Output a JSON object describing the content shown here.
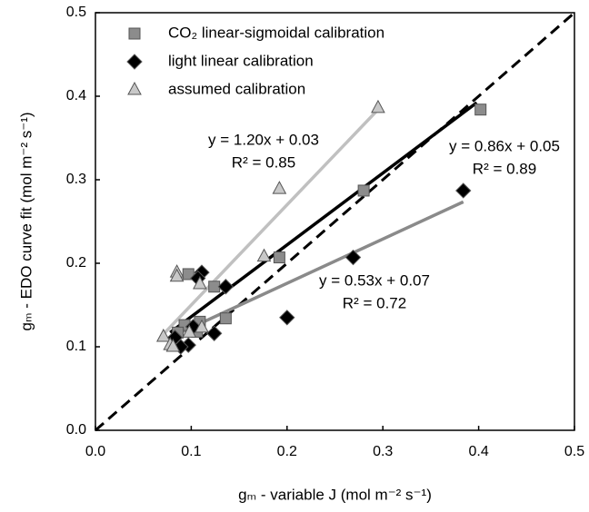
{
  "chart_data": {
    "type": "scatter",
    "x_label": "gₘ - variable J (mol m⁻² s⁻¹)",
    "y_label": "gₘ - EDO curve fit (mol m⁻² s⁻¹)",
    "xlim": [
      0,
      0.5
    ],
    "ylim": [
      0,
      0.5
    ],
    "xticks": [
      {
        "value": 0,
        "label": "0.0"
      },
      0.1,
      0.2,
      0.3,
      0.4,
      0.5
    ],
    "yticks": [
      {
        "value": 0,
        "label": "0.0"
      },
      0.1,
      0.2,
      0.3,
      0.4,
      0.5
    ],
    "identity_line": true,
    "series": [
      {
        "name": "CO₂ linear-sigmoidal calibration",
        "marker": "square",
        "color": "#8c8c8c",
        "x": [
          0.402,
          0.28,
          0.192,
          0.097,
          0.124,
          0.136,
          0.109,
          0.106,
          0.093,
          0.086
        ],
        "values": [
          0.384,
          0.287,
          0.207,
          0.187,
          0.172,
          0.134,
          0.13,
          0.118,
          0.126,
          0.117
        ]
      },
      {
        "name": "light linear calibration",
        "marker": "diamond",
        "color": "#000000",
        "x": [
          0.384,
          0.269,
          0.2,
          0.111,
          0.107,
          0.136,
          0.124,
          0.102,
          0.083,
          0.097,
          0.089
        ],
        "values": [
          0.287,
          0.207,
          0.135,
          0.189,
          0.182,
          0.172,
          0.116,
          0.124,
          0.111,
          0.102,
          0.1
        ]
      },
      {
        "name": "assumed calibration",
        "marker": "triangle",
        "color": "#c8c8c8",
        "x": [
          0.295,
          0.192,
          0.176,
          0.085,
          0.085,
          0.109,
          0.071,
          0.078,
          0.081,
          0.098,
          0.111
        ],
        "values": [
          0.386,
          0.289,
          0.208,
          0.189,
          0.184,
          0.175,
          0.112,
          0.102,
          0.1,
          0.117,
          0.123
        ]
      }
    ],
    "fits": [
      {
        "equation": "y = 1.20x + 0.03",
        "r2": "R² = 0.85",
        "slope": 1.2,
        "intercept": 0.03,
        "x_range": [
          0.072,
          0.295
        ],
        "color": "#c0c0c0"
      },
      {
        "equation": "y = 0.86x + 0.05",
        "r2": "R² = 0.89",
        "slope": 0.86,
        "intercept": 0.05,
        "x_range": [
          0.078,
          0.398
        ],
        "color": "#000000"
      },
      {
        "equation": "y = 0.53x + 0.07",
        "r2": "R² = 0.72",
        "slope": 0.53,
        "intercept": 0.07,
        "x_range": [
          0.075,
          0.384
        ],
        "color": "#8a8a8a"
      }
    ]
  }
}
